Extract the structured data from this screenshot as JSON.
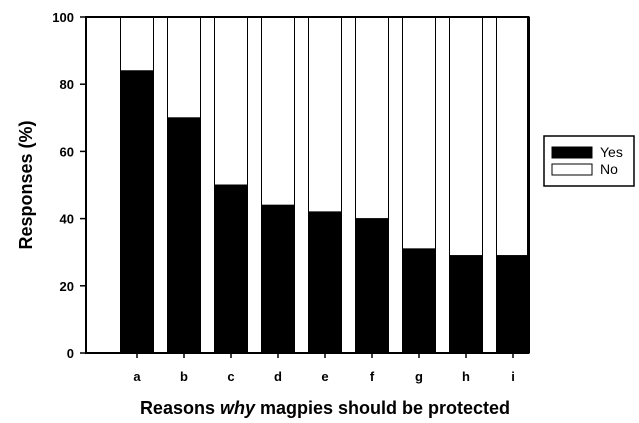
{
  "chart_data": {
    "type": "bar",
    "stacked": true,
    "categories": [
      "a",
      "b",
      "c",
      "d",
      "e",
      "f",
      "g",
      "h",
      "i"
    ],
    "series": [
      {
        "name": "Yes",
        "values": [
          84,
          70,
          50,
          44,
          42,
          40,
          31,
          29,
          29
        ],
        "color": "#000000"
      },
      {
        "name": "No",
        "values": [
          16,
          30,
          50,
          56,
          58,
          60,
          69,
          71,
          71
        ],
        "color": "#ffffff"
      }
    ],
    "title": "",
    "xlabel_parts": [
      {
        "text": "Reasons ",
        "italic": false
      },
      {
        "text": "why",
        "italic": true
      },
      {
        "text": " magpies should be protected",
        "italic": false
      }
    ],
    "ylabel": "Responses (%)",
    "ylim": [
      0,
      100
    ],
    "yticks": [
      "0",
      "20",
      "40",
      "60",
      "80",
      "100"
    ],
    "legend": {
      "position": "right",
      "entries": [
        "Yes",
        "No"
      ]
    },
    "grid": false
  }
}
